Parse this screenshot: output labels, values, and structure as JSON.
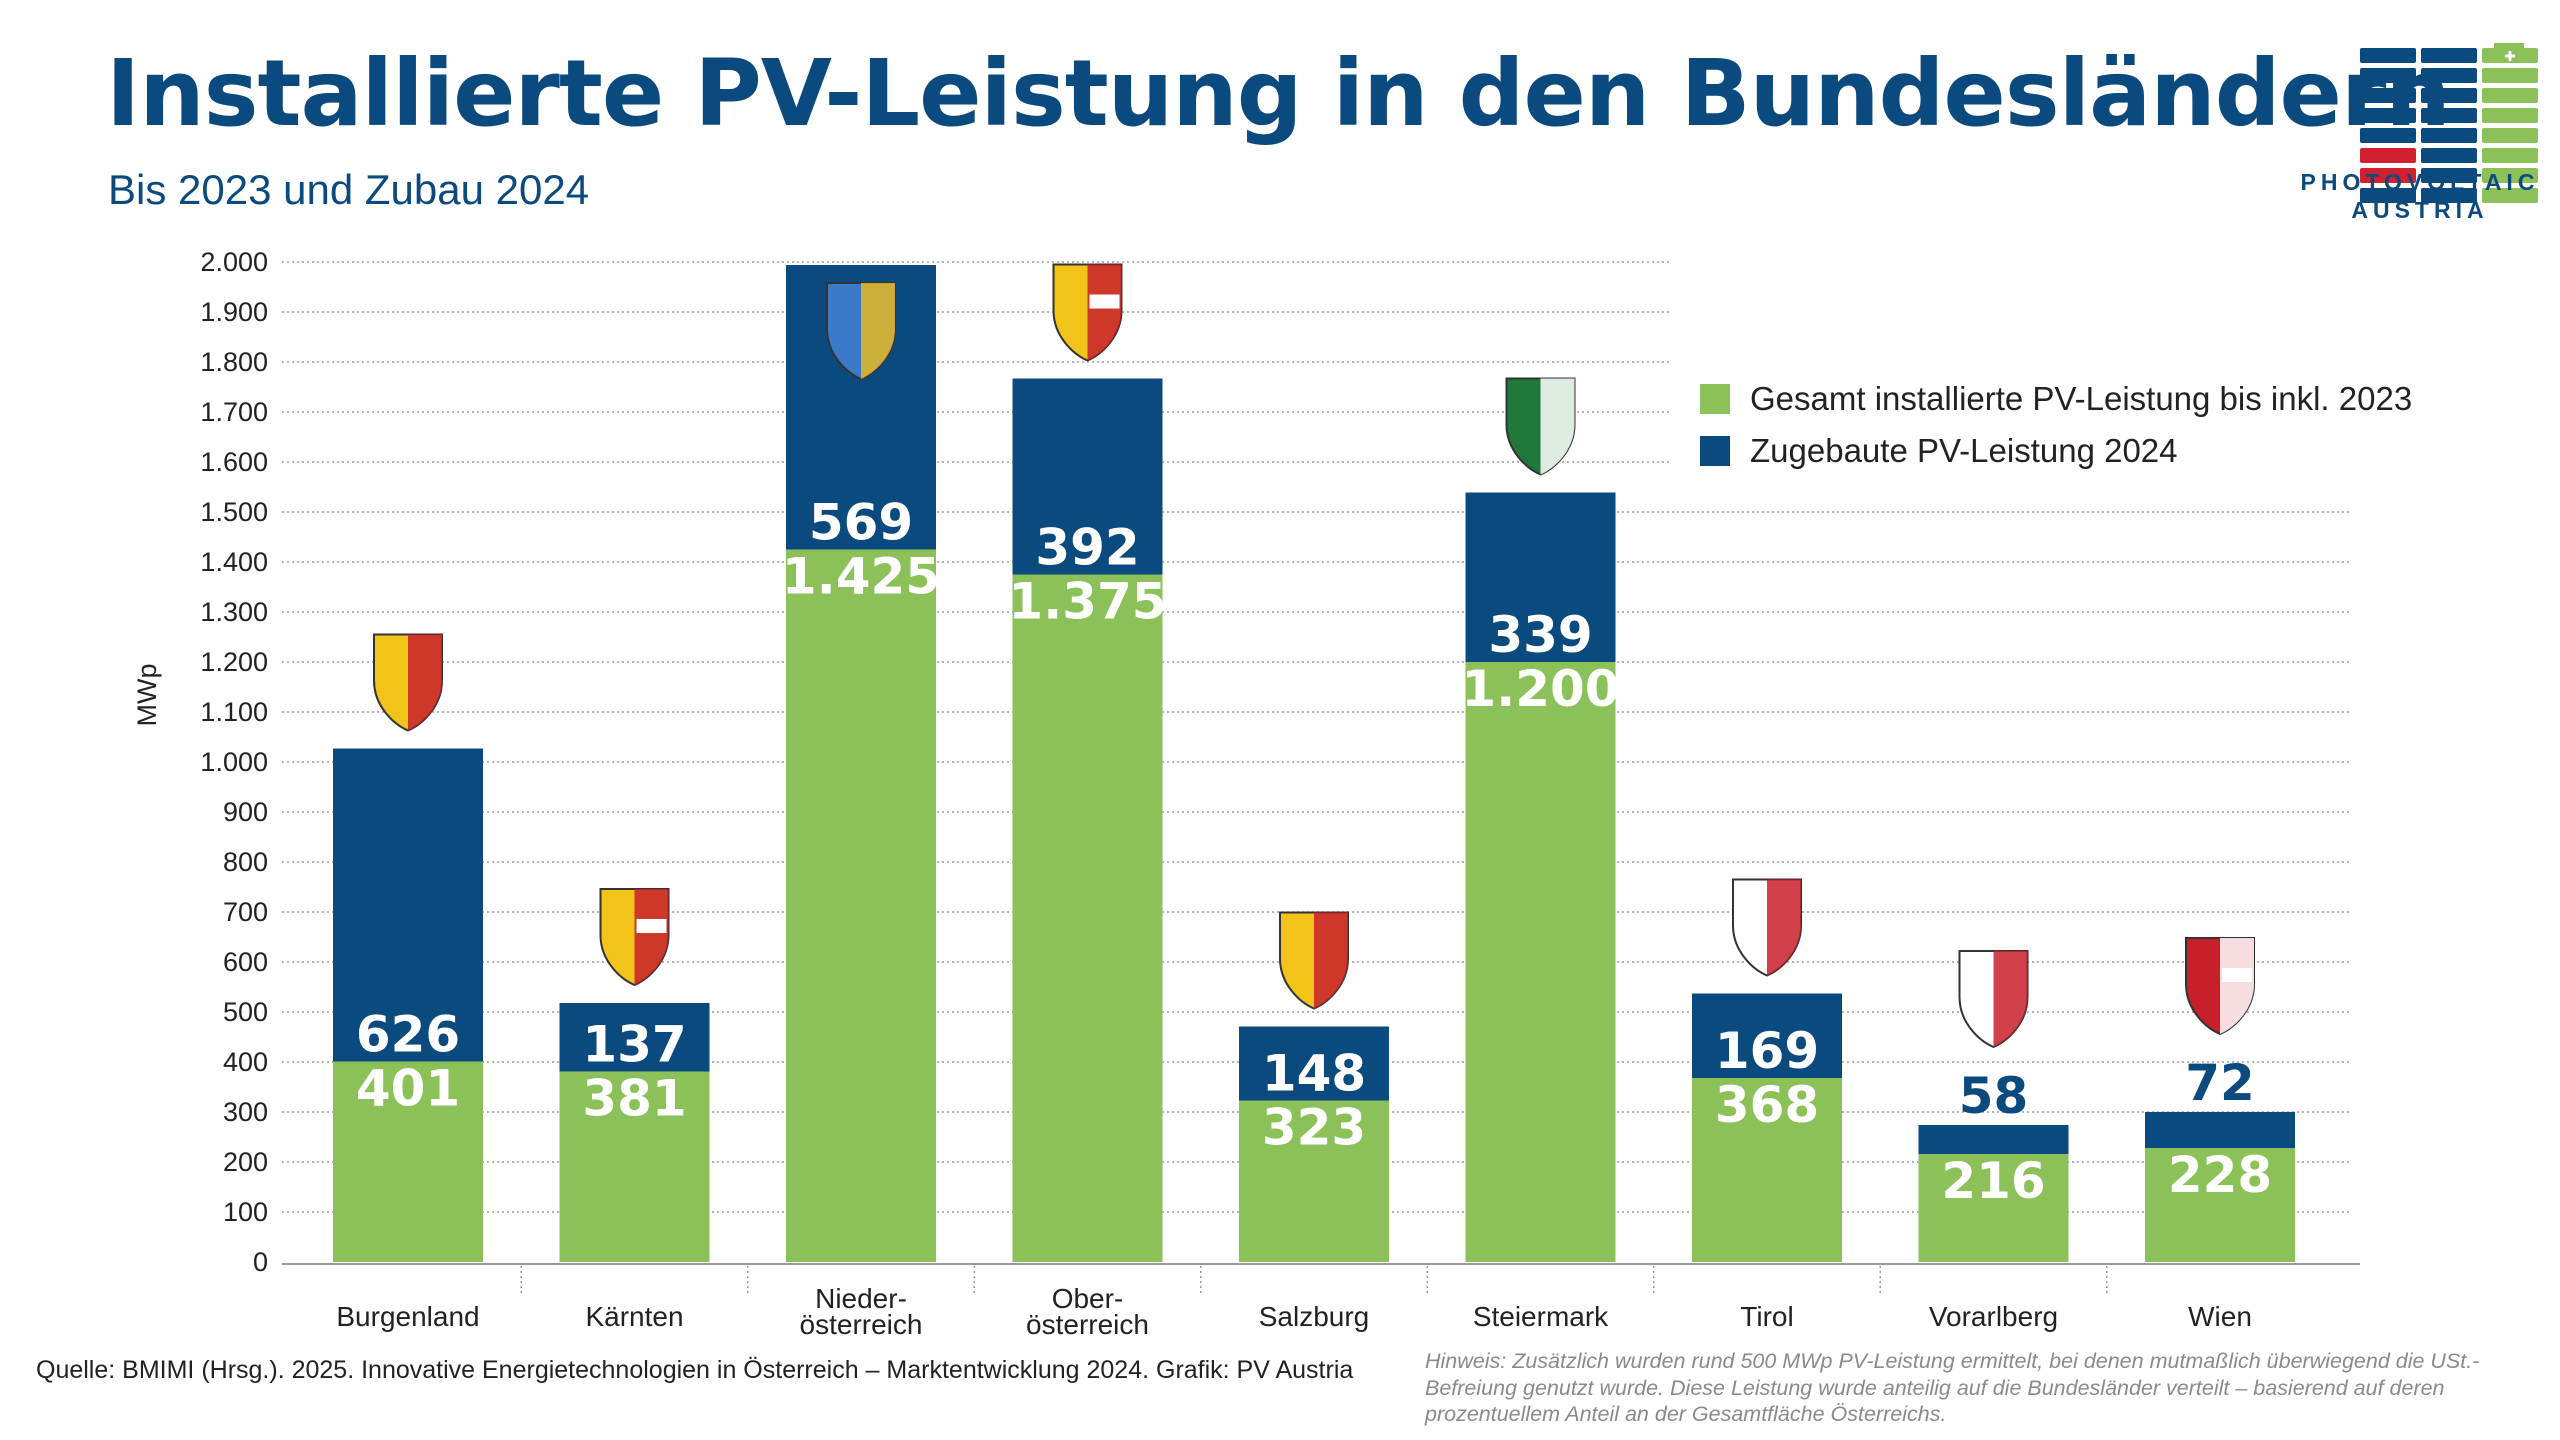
{
  "header": {
    "title": "Installierte PV-Leistung in den Bundesländern",
    "subtitle": "Bis 2023 und Zubau 2024"
  },
  "logo": {
    "line1": "PHOTOVOLTAIC",
    "line2": "AUSTRIA",
    "colors": {
      "blue": "#0b4a7e",
      "green": "#8bc158",
      "red": "#d1202f"
    }
  },
  "chart_data": {
    "type": "bar",
    "stacked": true,
    "categories": [
      "Burgenland",
      "Kärnten",
      "Nieder-\nösterreich",
      "Ober-\nösterreich",
      "Salzburg",
      "Steiermark",
      "Tirol",
      "Vorarlberg",
      "Wien"
    ],
    "category_icons": [
      "burgenland-coat-of-arms-icon",
      "kaernten-coat-of-arms-icon",
      "niederoesterreich-coat-of-arms-icon",
      "oberoesterreich-coat-of-arms-icon",
      "salzburg-coat-of-arms-icon",
      "steiermark-coat-of-arms-icon",
      "tirol-coat-of-arms-icon",
      "vorarlberg-coat-of-arms-icon",
      "wien-coat-of-arms-icon"
    ],
    "series": [
      {
        "name": "Gesamt installierte PV-Leistung bis inkl. 2023",
        "color": "#8bc158",
        "values": [
          401,
          381,
          1425,
          1375,
          323,
          1200,
          368,
          216,
          228
        ],
        "labels": [
          "401",
          "381",
          "1.425",
          "1.375",
          "323",
          "1.200",
          "368",
          "216",
          "228"
        ]
      },
      {
        "name": "Zugebaute PV-Leistung 2024",
        "color": "#0b4a7e",
        "values": [
          626,
          137,
          569,
          392,
          148,
          339,
          169,
          58,
          72
        ],
        "labels": [
          "626",
          "137",
          "569",
          "392",
          "148",
          "339",
          "169",
          "58",
          "72"
        ]
      }
    ],
    "ylabel": "MWp",
    "ylim": [
      0,
      2000
    ],
    "yticks": [
      0,
      100,
      200,
      300,
      400,
      500,
      600,
      700,
      800,
      900,
      1000,
      1100,
      1200,
      1300,
      1400,
      1500,
      1600,
      1700,
      1800,
      1900,
      2000
    ],
    "ytick_labels": [
      "0",
      "100",
      "200",
      "300",
      "400",
      "500",
      "600",
      "700",
      "800",
      "900",
      "1.000",
      "1.100",
      "1.200",
      "1.300",
      "1.400",
      "1.500",
      "1.600",
      "1.700",
      "1.800",
      "1.900",
      "2.000"
    ],
    "grid": true,
    "legend_position": "top-right"
  },
  "footer": {
    "source": "Quelle: BMIMI (Hrsg.). 2025. Innovative Energietechnologien in Österreich – Marktentwicklung 2024. Grafik: PV Austria",
    "note": "Hinweis: Zusätzlich wurden rund 500 MWp PV-Leistung ermittelt, bei denen mutmaßlich überwiegend die USt.-Befreiung genutzt wurde. Diese Leistung wurde anteilig auf die Bundesländer verteilt – basierend auf deren prozentuellem Anteil an der Gesamtfläche Österreichs."
  }
}
